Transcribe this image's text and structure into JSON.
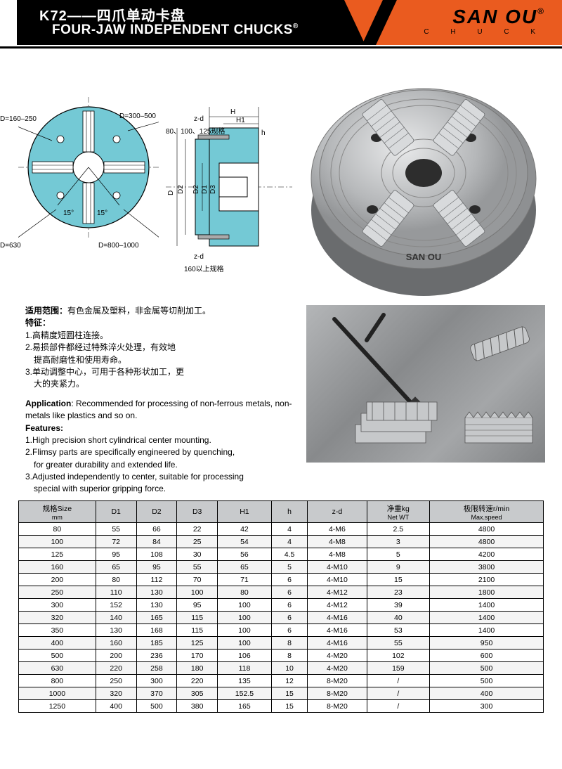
{
  "header": {
    "title_zh": "K72——四爪单动卡盘",
    "title_en": "FOUR-JAW INDEPENDENT CHUCKS",
    "logo_main": "SAN OU",
    "logo_sub": "C H U C K",
    "colors": {
      "black": "#000000",
      "orange": "#ea5b1f"
    }
  },
  "diagram": {
    "fill": "#74c9d5",
    "labels": {
      "d160_250": "D=160–250",
      "d300_500": "D=300–500",
      "d630": "D=630",
      "d800_1000": "D=800–1000",
      "angle": "15°",
      "spec1": "80、100、125规格",
      "spec2": "160以上规格",
      "H": "H",
      "H1": "H1",
      "h": "h",
      "D": "D",
      "D1": "D1",
      "D2": "D2",
      "D3": "D3",
      "zd": "z-d"
    },
    "photo_text": "SAN OU"
  },
  "info": {
    "scope_hdr": "适用范围：",
    "scope_body": "有色金属及塑料，非金属等切削加工。",
    "feat_hdr_zh": "特征：",
    "feat_zh_1": "1.高精度短圆柱连接。",
    "feat_zh_2": "2.易损部件都经过特殊淬火处理，有效地",
    "feat_zh_2b": "　提高耐磨性和使用寿命。",
    "feat_zh_3": "3.单动调整中心，可用于各种形状加工，更",
    "feat_zh_3b": "　大的夹紧力。",
    "app_hdr": "Application",
    "app_body": ": Recommended for processing of non-ferrous metals, non-metals like plastics and so on.",
    "feat_hdr_en": "Features:",
    "feat_en_1": "1.High precision short cylindrical center mounting.",
    "feat_en_2": "2.Flimsy parts are specifically engineered by quenching,",
    "feat_en_2b": "　for greater durability and extended life.",
    "feat_en_3": "3.Adjusted independently to center, suitable for processing",
    "feat_en_3b": "　special with superior gripping force."
  },
  "table": {
    "header_bg": "#c8cacc",
    "columns": [
      {
        "l1": "规格Size",
        "l2": "mm"
      },
      {
        "l1": "D1",
        "l2": ""
      },
      {
        "l1": "D2",
        "l2": ""
      },
      {
        "l1": "D3",
        "l2": ""
      },
      {
        "l1": "H1",
        "l2": ""
      },
      {
        "l1": "h",
        "l2": ""
      },
      {
        "l1": "z-d",
        "l2": ""
      },
      {
        "l1": "净重kg",
        "l2": "Net  WT"
      },
      {
        "l1": "极限转速r/min",
        "l2": "Max.speed"
      }
    ],
    "rows": [
      [
        "80",
        "55",
        "66",
        "22",
        "42",
        "4",
        "4-M6",
        "2.5",
        "4800"
      ],
      [
        "100",
        "72",
        "84",
        "25",
        "54",
        "4",
        "4-M8",
        "3",
        "4800"
      ],
      [
        "125",
        "95",
        "108",
        "30",
        "56",
        "4.5",
        "4-M8",
        "5",
        "4200"
      ],
      [
        "160",
        "65",
        "95",
        "55",
        "65",
        "5",
        "4-M10",
        "9",
        "3800"
      ],
      [
        "200",
        "80",
        "112",
        "70",
        "71",
        "6",
        "4-M10",
        "15",
        "2100"
      ],
      [
        "250",
        "110",
        "130",
        "100",
        "80",
        "6",
        "4-M12",
        "23",
        "1800"
      ],
      [
        "300",
        "152",
        "130",
        "95",
        "100",
        "6",
        "4-M12",
        "39",
        "1400"
      ],
      [
        "320",
        "140",
        "165",
        "115",
        "100",
        "6",
        "4-M16",
        "40",
        "1400"
      ],
      [
        "350",
        "130",
        "168",
        "115",
        "100",
        "6",
        "4-M16",
        "53",
        "1400"
      ],
      [
        "400",
        "160",
        "185",
        "125",
        "100",
        "8",
        "4-M16",
        "55",
        "950"
      ],
      [
        "500",
        "200",
        "236",
        "170",
        "106",
        "8",
        "4-M20",
        "102",
        "600"
      ],
      [
        "630",
        "220",
        "258",
        "180",
        "118",
        "10",
        "4-M20",
        "159",
        "500"
      ],
      [
        "800",
        "250",
        "300",
        "220",
        "135",
        "12",
        "8-M20",
        "/",
        "500"
      ],
      [
        "1000",
        "320",
        "370",
        "305",
        "152.5",
        "15",
        "8-M20",
        "/",
        "400"
      ],
      [
        "1250",
        "400",
        "500",
        "380",
        "165",
        "15",
        "8-M20",
        "/",
        "300"
      ]
    ]
  }
}
